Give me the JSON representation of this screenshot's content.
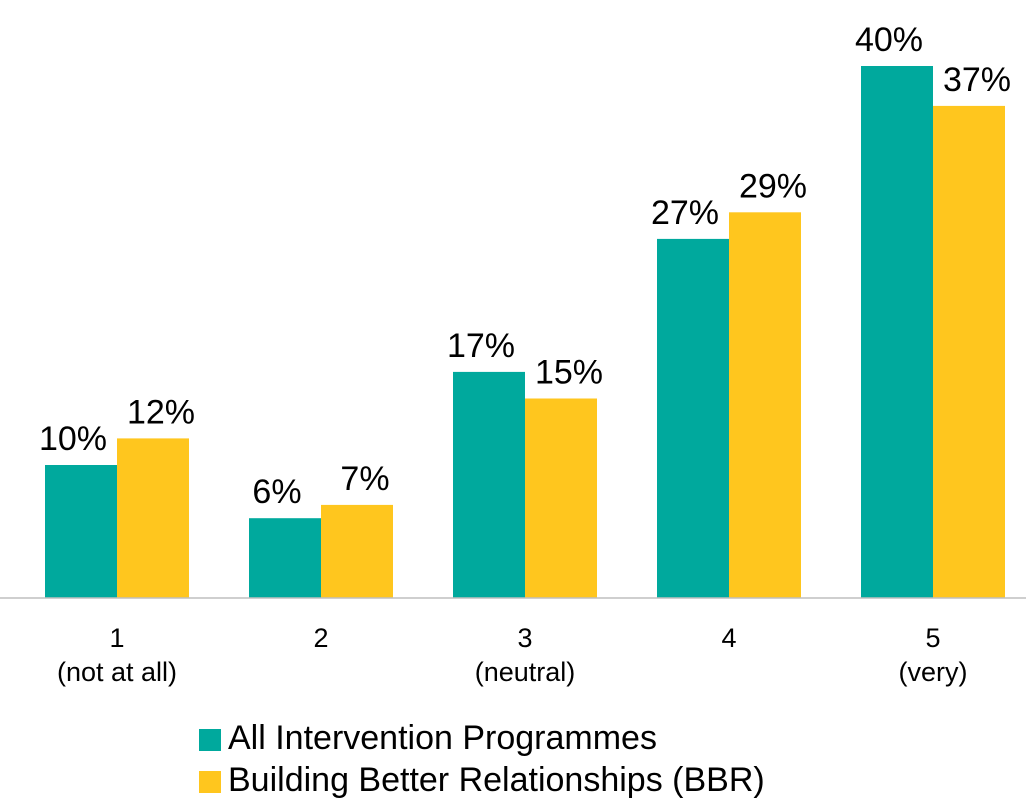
{
  "chart_data": {
    "type": "bar",
    "categories": [
      [
        "1",
        "(not at all)"
      ],
      [
        "2"
      ],
      [
        "3",
        "(neutral)"
      ],
      [
        "4"
      ],
      [
        "5",
        "(very)"
      ]
    ],
    "series": [
      {
        "name": "All Intervention Programmes",
        "color": "#00a99d",
        "values": [
          10,
          6,
          17,
          27,
          40
        ],
        "value_labels": [
          "10%",
          "6%",
          "17%",
          "27%",
          "40%"
        ]
      },
      {
        "name": "Building Better Relationships (BBR)",
        "color": "#ffc61e",
        "values": [
          12,
          7,
          15,
          29,
          37
        ],
        "value_labels": [
          "12%",
          "7%",
          "15%",
          "29%",
          "37%"
        ]
      }
    ],
    "legend": "bottom"
  }
}
